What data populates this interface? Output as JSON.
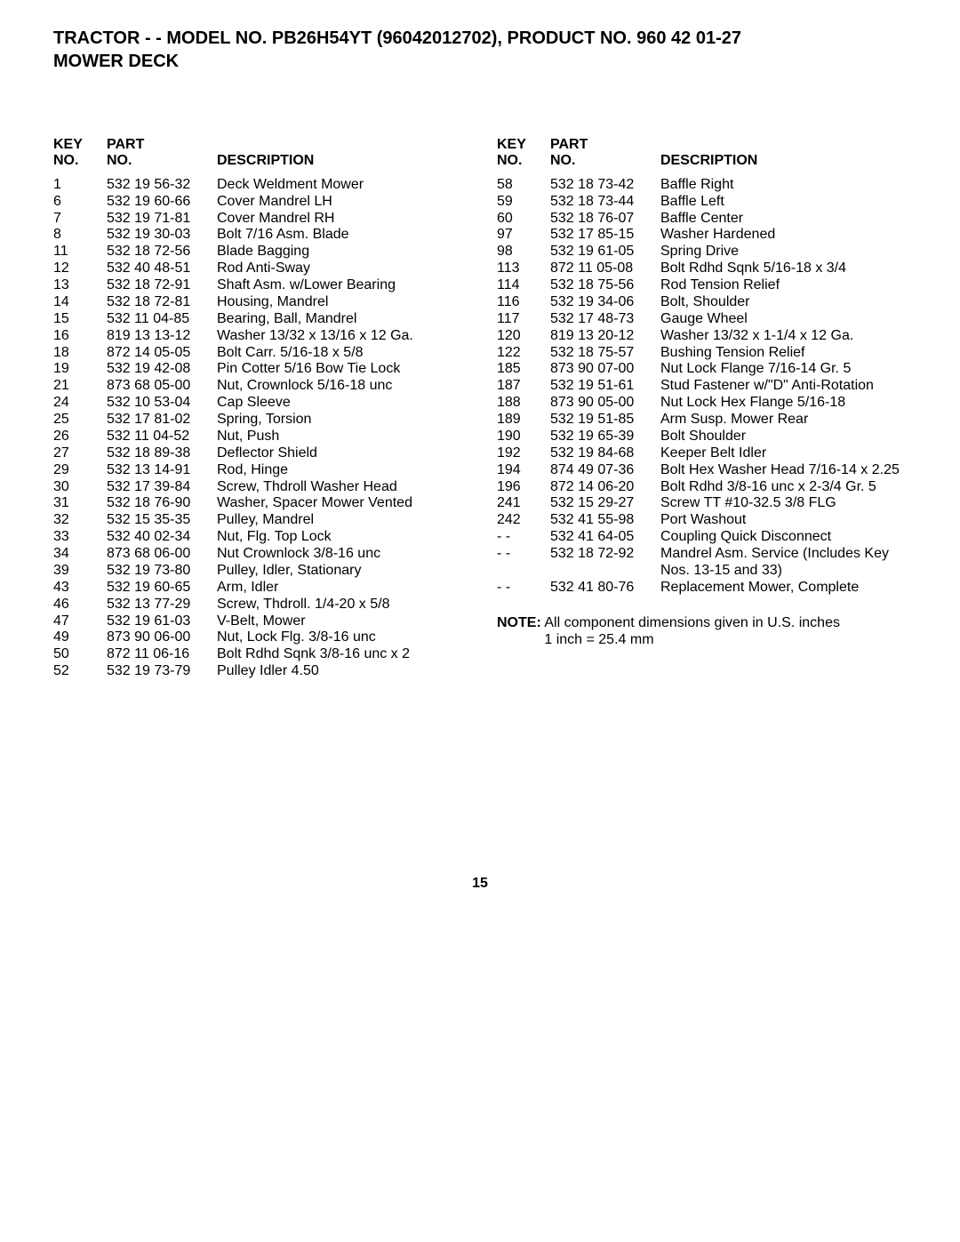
{
  "title_line1": "TRACTOR - - MODEL NO. PB26H54YT (96042012702), PRODUCT NO. 960 42 01-27",
  "title_line2": "MOWER DECK",
  "headers": {
    "key1": "KEY",
    "key2": "NO.",
    "part1": "PART",
    "part2": "NO.",
    "desc": "DESCRIPTION"
  },
  "left": [
    {
      "k": "1",
      "p": "532 19 56-32",
      "d": "Deck Weldment Mower"
    },
    {
      "k": "6",
      "p": "532 19 60-66",
      "d": "Cover Mandrel LH"
    },
    {
      "k": "7",
      "p": "532 19 71-81",
      "d": "Cover Mandrel RH"
    },
    {
      "k": "8",
      "p": "532 19 30-03",
      "d": "Bolt 7/16 Asm. Blade"
    },
    {
      "k": "11",
      "p": "532 18 72-56",
      "d": "Blade Bagging"
    },
    {
      "k": "12",
      "p": "532 40 48-51",
      "d": "Rod Anti-Sway"
    },
    {
      "k": "13",
      "p": "532 18 72-91",
      "d": "Shaft Asm. w/Lower Bearing"
    },
    {
      "k": "14",
      "p": "532 18 72-81",
      "d": "Housing, Mandrel"
    },
    {
      "k": "15",
      "p": "532 11 04-85",
      "d": "Bearing, Ball, Mandrel"
    },
    {
      "k": "16",
      "p": "819 13 13-12",
      "d": "Washer 13/32 x 13/16 x 12 Ga."
    },
    {
      "k": "18",
      "p": "872 14 05-05",
      "d": "Bolt Carr. 5/16-18 x 5/8"
    },
    {
      "k": "19",
      "p": "532 19 42-08",
      "d": "Pin Cotter 5/16 Bow Tie Lock"
    },
    {
      "k": "21",
      "p": "873 68 05-00",
      "d": "Nut, Crownlock  5/16-18 unc"
    },
    {
      "k": "24",
      "p": "532 10 53-04",
      "d": "Cap Sleeve"
    },
    {
      "k": "25",
      "p": "532 17 81-02",
      "d": "Spring, Torsion"
    },
    {
      "k": "26",
      "p": "532 11 04-52",
      "d": "Nut, Push"
    },
    {
      "k": "27",
      "p": "532 18 89-38",
      "d": "Deflector Shield"
    },
    {
      "k": "29",
      "p": "532 13 14-91",
      "d": "Rod, Hinge"
    },
    {
      "k": "30",
      "p": "532 17 39-84",
      "d": "Screw, Thdroll Washer Head"
    },
    {
      "k": "31",
      "p": "532 18 76-90",
      "d": "Washer, Spacer Mower Vented"
    },
    {
      "k": "32",
      "p": "532 15 35-35",
      "d": "Pulley, Mandrel"
    },
    {
      "k": "33",
      "p": "532 40 02-34",
      "d": "Nut, Flg. Top Lock"
    },
    {
      "k": "34",
      "p": "873 68 06-00",
      "d": "Nut Crownlock 3/8-16 unc"
    },
    {
      "k": "39",
      "p": "532 19 73-80",
      "d": "Pulley, Idler, Stationary"
    },
    {
      "k": "43",
      "p": "532 19 60-65",
      "d": "Arm, Idler"
    },
    {
      "k": "46",
      "p": "532 13 77-29",
      "d": "Screw, Thdroll. 1/4-20 x 5/8"
    },
    {
      "k": "47",
      "p": "532 19 61-03",
      "d": "V-Belt, Mower"
    },
    {
      "k": "49",
      "p": "873 90 06-00",
      "d": "Nut, Lock  Flg. 3/8-16 unc"
    },
    {
      "k": "50",
      "p": "872 11 06-16",
      "d": "Bolt Rdhd Sqnk 3/8-16 unc x 2"
    },
    {
      "k": "52",
      "p": "532 19 73-79",
      "d": "Pulley Idler 4.50"
    }
  ],
  "right": [
    {
      "k": "58",
      "p": "532 18 73-42",
      "d": "Baffle Right"
    },
    {
      "k": "59",
      "p": "532 18 73-44",
      "d": "Baffle Left"
    },
    {
      "k": "60",
      "p": "532 18 76-07",
      "d": "Baffle Center"
    },
    {
      "k": "97",
      "p": "532 17 85-15",
      "d": "Washer Hardened"
    },
    {
      "k": "98",
      "p": "532 19 61-05",
      "d": "Spring Drive"
    },
    {
      "k": "113",
      "p": "872 11 05-08",
      "d": "Bolt Rdhd Sqnk 5/16-18 x 3/4"
    },
    {
      "k": "114",
      "p": "532 18 75-56",
      "d": "Rod Tension  Relief"
    },
    {
      "k": "116",
      "p": "532 19 34-06",
      "d": "Bolt, Shoulder"
    },
    {
      "k": "117",
      "p": "532 17 48-73",
      "d": "Gauge Wheel"
    },
    {
      "k": "120",
      "p": "819 13 20-12",
      "d": "Washer 13/32 x 1-1/4 x 12 Ga."
    },
    {
      "k": "122",
      "p": "532 18 75-57",
      "d": "Bushing Tension Relief"
    },
    {
      "k": "185",
      "p": "873 90 07-00",
      "d": "Nut Lock Flange 7/16-14 Gr. 5"
    },
    {
      "k": "187",
      "p": "532 19 51-61",
      "d": "Stud Fastener w/\"D\" Anti-Rotation"
    },
    {
      "k": "188",
      "p": "873 90 05-00",
      "d": "Nut Lock Hex Flange 5/16-18"
    },
    {
      "k": "189",
      "p": "532 19 51-85",
      "d": "Arm Susp. Mower Rear"
    },
    {
      "k": "190",
      "p": "532 19 65-39",
      "d": "Bolt Shoulder"
    },
    {
      "k": "192",
      "p": "532 19 84-68",
      "d": "Keeper Belt Idler"
    },
    {
      "k": "194",
      "p": "874 49 07-36",
      "d": "Bolt Hex Washer Head 7/16-14 x 2.25"
    },
    {
      "k": "196",
      "p": "872 14 06-20",
      "d": "Bolt Rdhd 3/8-16 unc x 2-3/4 Gr. 5"
    },
    {
      "k": "241",
      "p": "532 15 29-27",
      "d": "Screw TT #10-32.5 3/8 FLG"
    },
    {
      "k": "242",
      "p": "532 41 55-98",
      "d": "Port Washout"
    },
    {
      "k": "- -",
      "p": "532 41 64-05",
      "d": "Coupling Quick Disconnect"
    },
    {
      "k": "- -",
      "p": "532 18 72-92",
      "d": "Mandrel Asm. Service (Includes Key Nos. 13-15 and 33)"
    },
    {
      "k": "- -",
      "p": "532 41 80-76",
      "d": "Replacement Mower, Complete"
    }
  ],
  "note_label": "NOTE:",
  "note_text1": "  All component dimensions given in U.S. inches",
  "note_text2": "1 inch = 25.4 mm",
  "page_number": "15"
}
